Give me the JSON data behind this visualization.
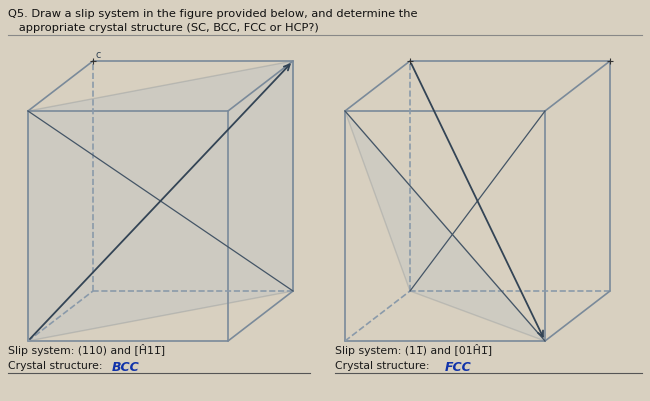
{
  "bg_color": "#d8d0c0",
  "face_bg": "#e8e4d8",
  "header_line1": "Q5. Draw a slip system in the figure provided below, and determine the",
  "header_line2": "   appropriate crystal structure (SC, BCC, FCC or HCP?)",
  "cube1_slip": "Slip system: (110) and [Ĥ11̅]",
  "cube1_crystal_label": "Crystal structure: ",
  "cube1_crystal_hand": "BCC",
  "cube2_slip": "Slip system: (11̅) and [01Ĥ1̅]",
  "cube2_crystal_label": "Crystal structure: ",
  "cube2_crystal_hand": "FCC",
  "line_color": "#7a8a9a",
  "dash_color": "#8a9aaa",
  "slip_fill": "#a8b8c8",
  "text_color": "#1a1a1a",
  "hand_color": "#1133aa",
  "header_color": "#111111"
}
